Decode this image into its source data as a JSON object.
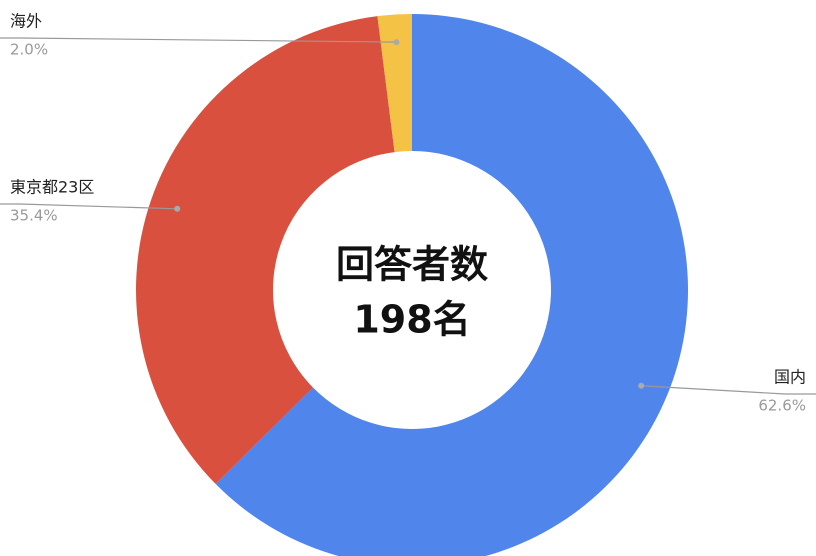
{
  "chart_data": {
    "type": "donut",
    "categories": [
      "国内",
      "東京都23区",
      "海外"
    ],
    "values": [
      62.6,
      35.4,
      2.0
    ],
    "value_labels": [
      "62.6%",
      "35.4%",
      "2.0%"
    ],
    "colors": [
      "#5085ec",
      "#d9503e",
      "#f4c244"
    ],
    "center_text": [
      "回答者数",
      "198名"
    ]
  }
}
